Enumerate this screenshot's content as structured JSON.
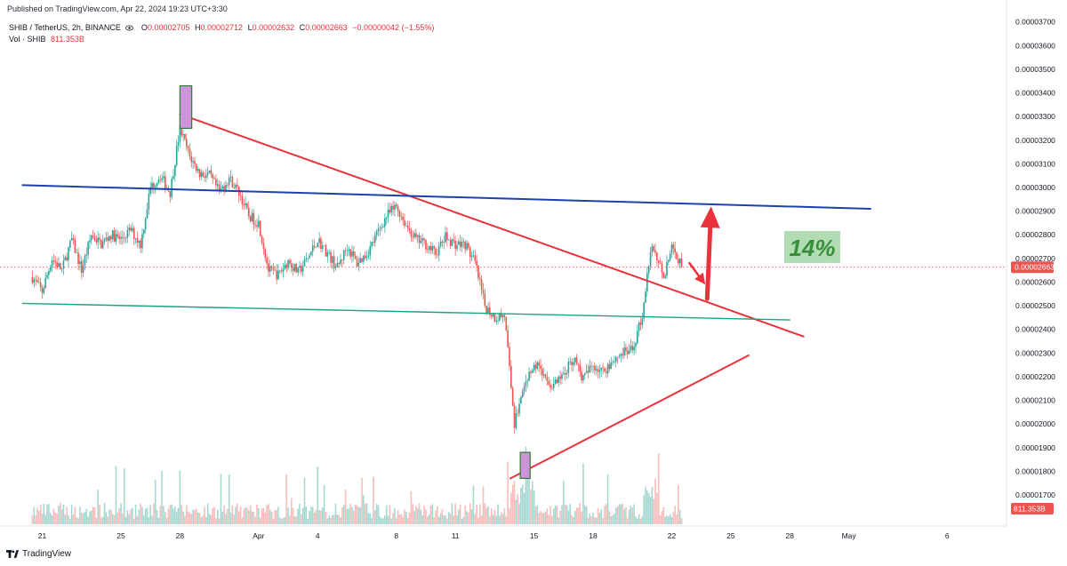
{
  "published": "Published on TradingView.com, Apr 22, 2024 19:23 UTC+3:30",
  "legend": {
    "symbol": "SHIB / TetherUS, 2h, BINANCE",
    "o_label": "O",
    "o_value": "0.00002705",
    "h_label": "H",
    "h_value": "0.00002712",
    "l_label": "L",
    "l_value": "0.00002632",
    "c_label": "C",
    "c_value": "0.00002663",
    "change": "−0.00000042 (−1.55%)",
    "vol_label": "Vol · SHIB",
    "vol_value": "811.353B"
  },
  "footer": {
    "brand": "TradingView"
  },
  "annotation": {
    "text": "14%"
  },
  "colors": {
    "up": "#26a69a",
    "down": "#ef5350",
    "trendline_red": "#e8323c",
    "resistance_blue": "#1e40af",
    "support_teal": "#1aa383",
    "annotation_bg": "#a5d6a7",
    "annotation_text": "#388e3c",
    "highlight_box": "#ce93d8"
  },
  "chart_data": {
    "type": "candlestick",
    "symbol": "SHIB / TetherUS",
    "interval": "2h",
    "exchange": "BINANCE",
    "y_axis_ticks": [
      "0.00003700",
      "0.00003600",
      "0.00003500",
      "0.00003400",
      "0.00003300",
      "0.00003200",
      "0.00003100",
      "0.00003000",
      "0.00002900",
      "0.00002800",
      "0.00002700",
      "0.00002600",
      "0.00002500",
      "0.00002400",
      "0.00002300",
      "0.00002200",
      "0.00002100",
      "0.00002000",
      "0.00001900",
      "0.00001800",
      "0.00001700"
    ],
    "ylim": [
      1.64e-05,
      3.71e-05
    ],
    "x_axis_ticks": [
      {
        "label": "21",
        "day": 0
      },
      {
        "label": "25",
        "day": 4
      },
      {
        "label": "28",
        "day": 7
      },
      {
        "label": "Apr",
        "day": 11
      },
      {
        "label": "4",
        "day": 14
      },
      {
        "label": "8",
        "day": 18
      },
      {
        "label": "11",
        "day": 21
      },
      {
        "label": "15",
        "day": 25
      },
      {
        "label": "18",
        "day": 28
      },
      {
        "label": "22",
        "day": 32
      },
      {
        "label": "25",
        "day": 35
      },
      {
        "label": "28",
        "day": 38
      },
      {
        "label": "May",
        "day": 41
      },
      {
        "label": "6",
        "day": 46
      }
    ],
    "last_price": "0.00002663",
    "last_volume": "811.353B",
    "price_path": [
      [
        -0.5,
        2.62e-05
      ],
      [
        0.0,
        2.56e-05
      ],
      [
        0.5,
        2.7e-05
      ],
      [
        1.0,
        2.65e-05
      ],
      [
        1.5,
        2.78e-05
      ],
      [
        2.0,
        2.65e-05
      ],
      [
        2.5,
        2.8e-05
      ],
      [
        3.0,
        2.76e-05
      ],
      [
        3.5,
        2.8e-05
      ],
      [
        4.0,
        2.78e-05
      ],
      [
        4.5,
        2.82e-05
      ],
      [
        5.0,
        2.76e-05
      ],
      [
        5.5,
        3e-05
      ],
      [
        6.0,
        3.05e-05
      ],
      [
        6.5,
        2.98e-05
      ],
      [
        7.0,
        3.25e-05
      ],
      [
        7.5,
        3.13e-05
      ],
      [
        8.0,
        3.06e-05
      ],
      [
        8.5,
        3.05e-05
      ],
      [
        9.0,
        2.98e-05
      ],
      [
        9.5,
        3.04e-05
      ],
      [
        10.0,
        2.98e-05
      ],
      [
        10.5,
        2.88e-05
      ],
      [
        11.0,
        2.85e-05
      ],
      [
        11.5,
        2.65e-05
      ],
      [
        12.0,
        2.63e-05
      ],
      [
        12.5,
        2.69e-05
      ],
      [
        13.0,
        2.64e-05
      ],
      [
        13.5,
        2.7e-05
      ],
      [
        14.0,
        2.78e-05
      ],
      [
        14.5,
        2.72e-05
      ],
      [
        15.0,
        2.66e-05
      ],
      [
        15.5,
        2.75e-05
      ],
      [
        16.0,
        2.68e-05
      ],
      [
        16.5,
        2.72e-05
      ],
      [
        17.0,
        2.8e-05
      ],
      [
        17.5,
        2.88e-05
      ],
      [
        18.0,
        2.92e-05
      ],
      [
        18.5,
        2.84e-05
      ],
      [
        19.0,
        2.78e-05
      ],
      [
        19.5,
        2.76e-05
      ],
      [
        20.0,
        2.72e-05
      ],
      [
        20.5,
        2.79e-05
      ],
      [
        21.0,
        2.76e-05
      ],
      [
        21.5,
        2.76e-05
      ],
      [
        22.0,
        2.68e-05
      ],
      [
        22.5,
        2.5e-05
      ],
      [
        23.0,
        2.45e-05
      ],
      [
        23.5,
        2.46e-05
      ],
      [
        24.0,
        2e-05
      ],
      [
        24.3,
        2.1e-05
      ],
      [
        24.7,
        2.2e-05
      ],
      [
        25.2,
        2.26e-05
      ],
      [
        25.6,
        2.18e-05
      ],
      [
        26.0,
        2.16e-05
      ],
      [
        26.5,
        2.21e-05
      ],
      [
        27.0,
        2.28e-05
      ],
      [
        27.5,
        2.19e-05
      ],
      [
        28.0,
        2.25e-05
      ],
      [
        28.5,
        2.22e-05
      ],
      [
        29.0,
        2.27e-05
      ],
      [
        29.5,
        2.3e-05
      ],
      [
        30.0,
        2.31e-05
      ],
      [
        30.5,
        2.46e-05
      ],
      [
        30.8,
        2.65e-05
      ],
      [
        31.0,
        2.76e-05
      ],
      [
        31.3,
        2.69e-05
      ],
      [
        31.6,
        2.63e-05
      ],
      [
        32.0,
        2.74e-05
      ],
      [
        32.3,
        2.705e-05
      ],
      [
        32.5,
        2.663e-05
      ]
    ],
    "trendlines": [
      {
        "name": "descending resistance",
        "points": [
          [
            7.0,
            3.31e-05
          ],
          [
            38.7,
            2.37e-05
          ]
        ],
        "color": "red"
      },
      {
        "name": "ascending support",
        "points": [
          [
            23.8,
            1.77e-05
          ],
          [
            35.9,
            2.29e-05
          ]
        ],
        "color": "red"
      },
      {
        "name": "horizontal resistance",
        "points": [
          [
            -1.0,
            3.01e-05
          ],
          [
            42.1,
            2.91e-05
          ]
        ],
        "color": "blue"
      },
      {
        "name": "horizontal support",
        "points": [
          [
            -1.0,
            2.51e-05
          ],
          [
            38.0,
            2.44e-05
          ]
        ],
        "color": "teal"
      }
    ],
    "highlights": [
      {
        "day_from": 7.0,
        "day_to": 7.6,
        "y_from": 3.25e-05,
        "y_to": 3.43e-05
      },
      {
        "day_from": 24.3,
        "day_to": 24.8,
        "y_from": 1.77e-05,
        "y_to": 1.88e-05
      }
    ],
    "arrows": [
      {
        "from": [
          32.9,
          2.68e-05
        ],
        "to": [
          33.7,
          2.59e-05
        ],
        "color": "red"
      },
      {
        "from": [
          33.8,
          2.53e-05
        ],
        "to": [
          34.0,
          2.92e-05
        ],
        "color": "red"
      }
    ]
  }
}
